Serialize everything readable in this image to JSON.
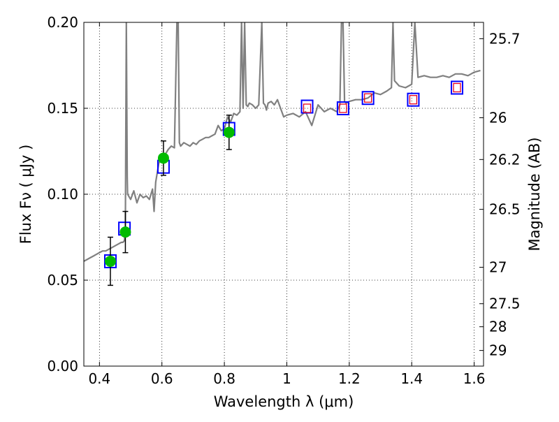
{
  "chart_data": {
    "type": "line",
    "title": "",
    "xlabel": "Wavelength  λ (μm)",
    "ylabel": "Flux  Fν  ( μJy )",
    "y2label": "Magnitude (AB)",
    "xlim": [
      0.35,
      1.63
    ],
    "ylim": [
      0.0,
      0.2
    ],
    "grid": true,
    "x_ticks": [
      "0.4",
      "0.6",
      "0.8",
      "1",
      "1.2",
      "1.4",
      "1.6"
    ],
    "y_ticks": [
      "0.00",
      "0.05",
      "0.10",
      "0.15",
      "0.20"
    ],
    "y2_ticks": [
      {
        "label": "25.7",
        "flux": 0.1905
      },
      {
        "label": "26",
        "flux": 0.1445
      },
      {
        "label": "26.2",
        "flux": 0.1202
      },
      {
        "label": "26.5",
        "flux": 0.0912
      },
      {
        "label": "27",
        "flux": 0.0575
      },
      {
        "label": "27.5",
        "flux": 0.0363
      },
      {
        "label": "28",
        "flux": 0.0229
      },
      {
        "label": "29",
        "flux": 0.0091
      }
    ],
    "series": [
      {
        "kind": "spectrum",
        "color": "#808080",
        "x": [
          0.35,
          0.36,
          0.37,
          0.38,
          0.39,
          0.4,
          0.41,
          0.42,
          0.43,
          0.44,
          0.45,
          0.46,
          0.47,
          0.475,
          0.48,
          0.483,
          0.486,
          0.489,
          0.49,
          0.5,
          0.51,
          0.52,
          0.53,
          0.54,
          0.55,
          0.56,
          0.57,
          0.575,
          0.58,
          0.59,
          0.6,
          0.61,
          0.62,
          0.63,
          0.64,
          0.648,
          0.652,
          0.656,
          0.66,
          0.67,
          0.68,
          0.69,
          0.7,
          0.71,
          0.72,
          0.73,
          0.74,
          0.75,
          0.76,
          0.77,
          0.78,
          0.79,
          0.8,
          0.81,
          0.82,
          0.83,
          0.84,
          0.85,
          0.855,
          0.86,
          0.865,
          0.87,
          0.875,
          0.88,
          0.89,
          0.9,
          0.91,
          0.92,
          0.925,
          0.93,
          0.935,
          0.94,
          0.95,
          0.96,
          0.97,
          0.98,
          0.99,
          1.0,
          1.02,
          1.04,
          1.06,
          1.08,
          1.1,
          1.12,
          1.14,
          1.16,
          1.17,
          1.175,
          1.18,
          1.185,
          1.19,
          1.2,
          1.22,
          1.24,
          1.26,
          1.28,
          1.3,
          1.32,
          1.335,
          1.34,
          1.345,
          1.35,
          1.36,
          1.38,
          1.4,
          1.41,
          1.42,
          1.44,
          1.46,
          1.48,
          1.5,
          1.52,
          1.54,
          1.56,
          1.58,
          1.6,
          1.62
        ],
        "y": [
          0.061,
          0.062,
          0.063,
          0.064,
          0.065,
          0.066,
          0.067,
          0.067,
          0.068,
          0.069,
          0.07,
          0.071,
          0.072,
          0.072,
          0.073,
          0.08,
          0.2,
          0.11,
          0.1,
          0.097,
          0.102,
          0.095,
          0.1,
          0.098,
          0.099,
          0.097,
          0.103,
          0.09,
          0.107,
          0.118,
          0.121,
          0.123,
          0.126,
          0.128,
          0.127,
          0.2,
          0.2,
          0.13,
          0.128,
          0.13,
          0.129,
          0.128,
          0.13,
          0.129,
          0.131,
          0.132,
          0.133,
          0.133,
          0.134,
          0.135,
          0.14,
          0.137,
          0.138,
          0.145,
          0.142,
          0.147,
          0.146,
          0.148,
          0.2,
          0.15,
          0.2,
          0.152,
          0.151,
          0.153,
          0.152,
          0.15,
          0.152,
          0.2,
          0.153,
          0.152,
          0.149,
          0.153,
          0.154,
          0.152,
          0.155,
          0.15,
          0.145,
          0.146,
          0.147,
          0.145,
          0.148,
          0.14,
          0.152,
          0.148,
          0.15,
          0.148,
          0.152,
          0.2,
          0.2,
          0.154,
          0.153,
          0.154,
          0.155,
          0.155,
          0.156,
          0.159,
          0.158,
          0.16,
          0.162,
          0.2,
          0.166,
          0.165,
          0.163,
          0.162,
          0.164,
          0.2,
          0.168,
          0.169,
          0.168,
          0.168,
          0.169,
          0.168,
          0.17,
          0.17,
          0.169,
          0.171,
          0.172
        ]
      },
      {
        "kind": "model-boxes",
        "edgecolor": "#0000ff",
        "x": [
          0.435,
          0.48,
          0.605,
          0.815,
          1.065,
          1.18,
          1.26,
          1.405,
          1.545
        ],
        "y": [
          0.061,
          0.08,
          0.116,
          0.138,
          0.151,
          0.15,
          0.156,
          0.155,
          0.162
        ]
      },
      {
        "kind": "observed-boxes",
        "edgecolor": "#e8001c",
        "x": [
          1.065,
          1.18,
          1.26,
          1.405,
          1.545
        ],
        "y": [
          0.15,
          0.15,
          0.156,
          0.155,
          0.162
        ]
      },
      {
        "kind": "observed-points",
        "color": "#00bb00",
        "x": [
          0.435,
          0.483,
          0.605,
          0.815
        ],
        "y": [
          0.061,
          0.078,
          0.121,
          0.136
        ],
        "err": [
          0.014,
          0.012,
          0.01,
          0.01
        ]
      }
    ]
  }
}
